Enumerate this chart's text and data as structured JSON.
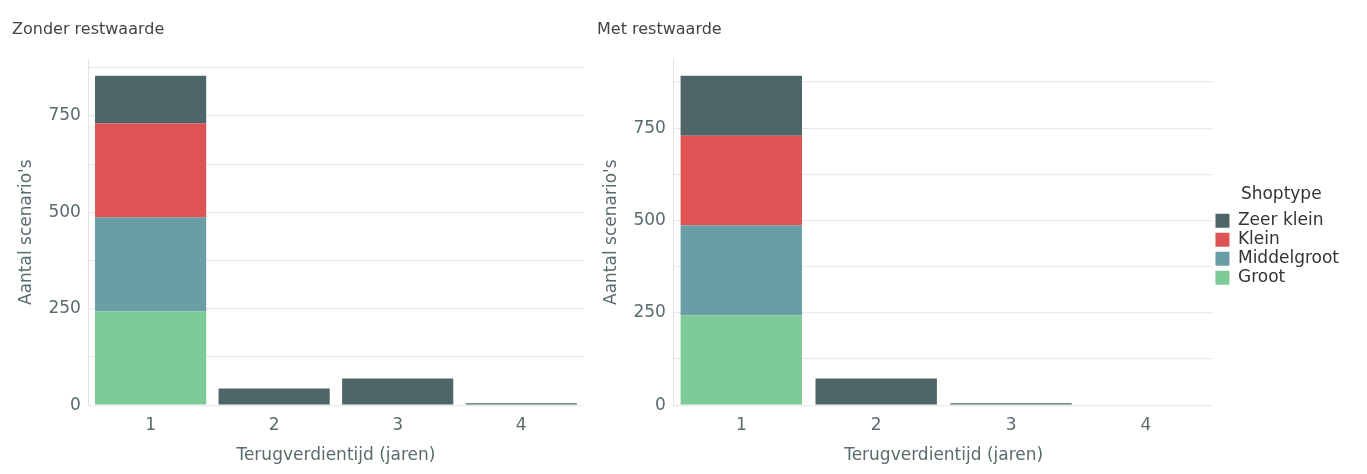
{
  "chart_data": [
    {
      "type": "bar",
      "title": "Zonder restwaarde",
      "xlabel": "Terugverdientijd (jaren)",
      "ylabel": "Aantal scenario's",
      "categories": [
        "1",
        "2",
        "3",
        "4"
      ],
      "stacked": true,
      "series": [
        {
          "color": "#7fcb97",
          "values": [
            243,
            0,
            0,
            0
          ]
        },
        {
          "color": "#6a9ea6",
          "values": [
            244,
            0,
            0,
            0
          ]
        },
        {
          "color": "#de5454",
          "values": [
            243,
            0,
            0,
            0
          ]
        },
        {
          "color": "#4f6669",
          "values": [
            124,
            43,
            69,
            5
          ]
        }
      ],
      "ylim": [
        0,
        897
      ],
      "yticks": [
        0,
        {
          "value": 125,
          "label": null
        },
        250,
        {
          "value": 375,
          "label": null
        },
        500,
        {
          "value": 625,
          "label": null
        },
        750,
        {
          "value": 875,
          "label": null
        }
      ],
      "grid": "y",
      "legend": false
    },
    {
      "type": "bar",
      "title": "Met restwaarde",
      "xlabel": "Terugverdientijd (jaren)",
      "ylabel": "Aantal scenario's",
      "legend_title": "Shoptype",
      "categories": [
        "1",
        "2",
        "3",
        "4"
      ],
      "stacked": true,
      "series": [
        {
          "name": "Groot",
          "color": "#7fcb97",
          "values": [
            243,
            0,
            0,
            0
          ]
        },
        {
          "name": "Middelgroot",
          "color": "#6a9ea6",
          "values": [
            244,
            0,
            0,
            0
          ]
        },
        {
          "name": "Klein",
          "color": "#de5454",
          "values": [
            243,
            0,
            0,
            0
          ]
        },
        {
          "name": "Zeer klein",
          "color": "#4f6669",
          "values": [
            162,
            72,
            5,
            0
          ]
        }
      ],
      "ylim": [
        0,
        937
      ],
      "yticks": [
        0,
        {
          "value": 125,
          "label": null
        },
        250,
        {
          "value": 375,
          "label": null
        },
        500,
        {
          "value": 625,
          "label": null
        },
        750,
        {
          "value": 875,
          "label": null
        }
      ],
      "grid": "y",
      "legend": "right"
    }
  ]
}
